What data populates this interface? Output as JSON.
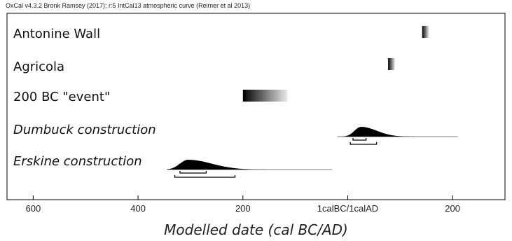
{
  "header": "OxCal v4.3.2 Bronk Ramsey (2017); r:5 IntCal13 atmospheric curve (Reimer et al 2013)",
  "chart_data": {
    "type": "oxcal-multiplot",
    "xlabel": "Modelled date (cal BC/AD)",
    "xlim": [
      -650,
      300
    ],
    "ticks": [
      {
        "value": -600,
        "label": "600"
      },
      {
        "value": -400,
        "label": "400"
      },
      {
        "value": -200,
        "label": "200"
      },
      {
        "value": 0,
        "label": "1calBC/1calAD"
      },
      {
        "value": 200,
        "label": "200"
      }
    ],
    "items": [
      {
        "label": "Antonine Wall",
        "italic": false,
        "kind": "gradient",
        "from": 142,
        "to": 155
      },
      {
        "label": "Agricola",
        "italic": false,
        "kind": "gradient",
        "from": 77,
        "to": 90
      },
      {
        "label": "200 BC \"event\"",
        "italic": false,
        "kind": "gradient",
        "from": -200,
        "to": -115
      },
      {
        "label": "Dumbuck construction",
        "italic": true,
        "kind": "distribution",
        "support": [
          -20,
          210
        ],
        "peak": 25,
        "spreadLeft": 12,
        "spreadRight": 30,
        "ranges": [
          {
            "prob": "68.2%",
            "from": 10,
            "to": 35
          },
          {
            "prob": "95.4%",
            "from": 5,
            "to": 55
          }
        ]
      },
      {
        "label": "Erskine construction",
        "italic": true,
        "kind": "distribution",
        "support": [
          -345,
          -30
        ],
        "peak": -305,
        "spreadLeft": 15,
        "spreadRight": 45,
        "ranges": [
          {
            "prob": "68.2%",
            "from": -320,
            "to": -270
          },
          {
            "prob": "95.4%",
            "from": -330,
            "to": -215
          }
        ]
      }
    ]
  }
}
